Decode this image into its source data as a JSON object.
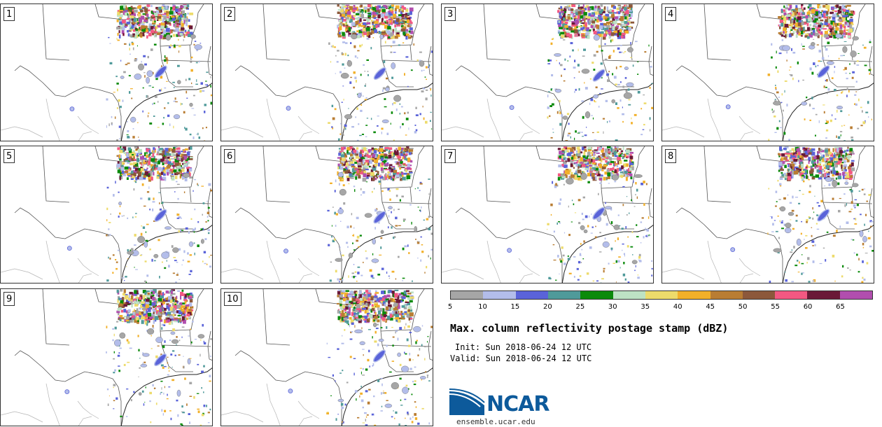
{
  "panels": [
    {
      "label": "1"
    },
    {
      "label": "2"
    },
    {
      "label": "3"
    },
    {
      "label": "4"
    },
    {
      "label": "5"
    },
    {
      "label": "6"
    },
    {
      "label": "7"
    },
    {
      "label": "8"
    },
    {
      "label": "9"
    },
    {
      "label": "10"
    }
  ],
  "colorbar": {
    "colors": [
      "#a6a6a6",
      "#b3bdea",
      "#5a63d9",
      "#4f9a9a",
      "#0b8a0b",
      "#bde2c4",
      "#eddb6b",
      "#f2b02a",
      "#b97d33",
      "#8c583b",
      "#f35882",
      "#6a1937",
      "#b14eae"
    ],
    "ticks": [
      "5",
      "10",
      "15",
      "20",
      "25",
      "30",
      "35",
      "40",
      "45",
      "50",
      "55",
      "60",
      "65"
    ]
  },
  "title": "Max. column reflectivity postage stamp (dBZ)",
  "init": "Init: Sun 2018-06-24 12 UTC",
  "valid": "Valid: Sun 2018-06-24 12 UTC",
  "logo": {
    "text": "NCAR",
    "url": "ensemble.ucar.edu",
    "color": "#0d5a9b"
  }
}
